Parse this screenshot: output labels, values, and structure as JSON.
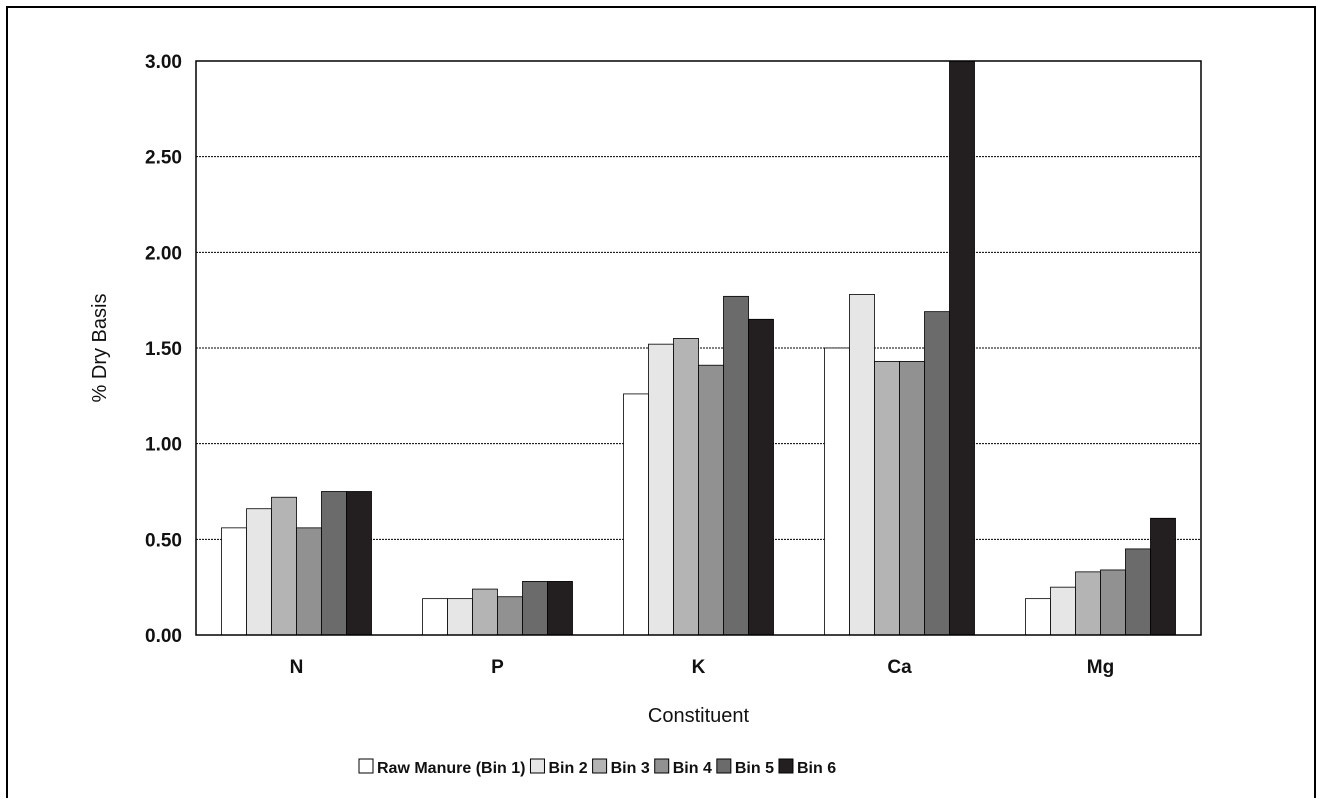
{
  "chart_data": {
    "type": "bar",
    "title": "",
    "xlabel": "Constituent",
    "ylabel": "% Dry Basis",
    "categories": [
      "N",
      "P",
      "K",
      "Ca",
      "Mg"
    ],
    "ylim": [
      0,
      3.0
    ],
    "yticks": [
      "0.00",
      "0.50",
      "1.00",
      "1.50",
      "2.00",
      "2.50",
      "3.00"
    ],
    "grid": true,
    "legend_position": "bottom",
    "series": [
      {
        "name": "Raw Manure (Bin 1)",
        "color": "#ffffff",
        "values": [
          0.56,
          0.19,
          1.26,
          1.5,
          0.19
        ]
      },
      {
        "name": "Bin 2",
        "color": "#e6e6e6",
        "values": [
          0.66,
          0.19,
          1.52,
          1.78,
          0.25
        ]
      },
      {
        "name": "Bin 3",
        "color": "#b4b4b4",
        "values": [
          0.72,
          0.24,
          1.55,
          1.43,
          0.33
        ]
      },
      {
        "name": "Bin 4",
        "color": "#919191",
        "values": [
          0.56,
          0.2,
          1.41,
          1.43,
          0.34
        ]
      },
      {
        "name": "Bin 5",
        "color": "#6b6b6b",
        "values": [
          0.75,
          0.28,
          1.77,
          1.69,
          0.45
        ]
      },
      {
        "name": "Bin 6",
        "color": "#231f20",
        "values": [
          0.75,
          0.28,
          1.65,
          3.0,
          0.61
        ]
      }
    ]
  }
}
